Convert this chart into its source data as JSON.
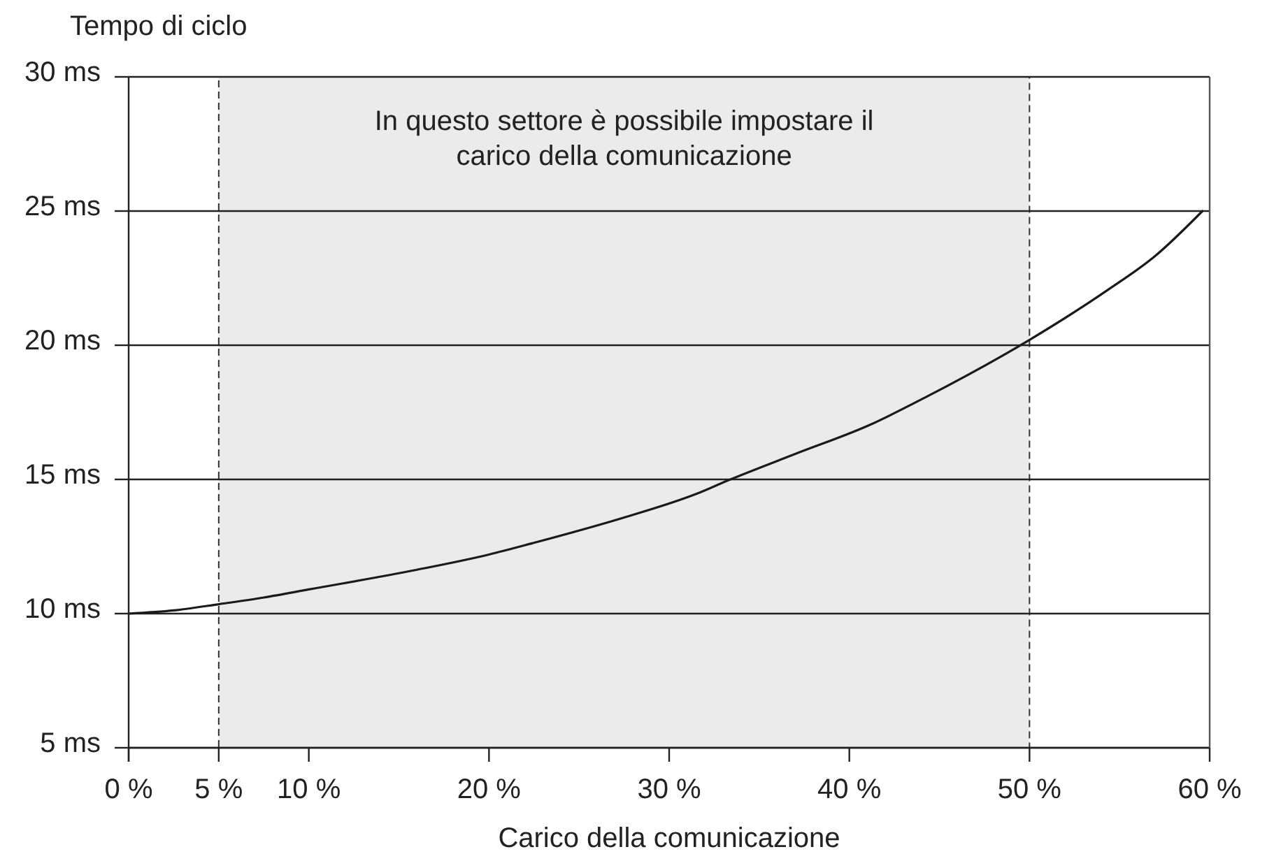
{
  "chart_data": {
    "type": "line",
    "xlabel": "Carico della comunicazione",
    "ylabel": "Tempo di ciclo",
    "x": [
      0,
      2.5,
      5,
      7.5,
      10,
      15.9,
      20,
      22.4,
      27.5,
      31.5,
      33.4,
      37,
      41.2,
      44.2,
      50,
      54.3,
      57,
      59.6
    ],
    "series": [
      {
        "color": "#1a1a1a",
        "values": [
          10,
          10.12,
          10.35,
          10.6,
          10.9,
          11.62,
          12.2,
          12.62,
          13.58,
          14.46,
          15,
          15.95,
          17.05,
          18.05,
          20.2,
          22.04,
          23.34,
          25
        ]
      }
    ],
    "xlim": [
      0,
      60
    ],
    "xticks": [
      {
        "value": 0,
        "label": "0 %"
      },
      {
        "value": 5,
        "label": "5 %"
      },
      {
        "value": 10,
        "label": "10 %"
      },
      {
        "value": 20,
        "label": "20 %"
      },
      {
        "value": 30,
        "label": "30 %"
      },
      {
        "value": 40,
        "label": "40 %"
      },
      {
        "value": 50,
        "label": "50 %"
      },
      {
        "value": 60,
        "label": "60 %"
      }
    ],
    "ylim": [
      5,
      30
    ],
    "yticks": [
      {
        "value": 5,
        "label": "5 ms"
      },
      {
        "value": 10,
        "label": "10 ms"
      },
      {
        "value": 15,
        "label": "15 ms"
      },
      {
        "value": 20,
        "label": "20 ms"
      },
      {
        "value": 25,
        "label": "25 ms"
      },
      {
        "value": 30,
        "label": "30 ms"
      }
    ],
    "grid": "y",
    "bands": [
      {
        "axis": "x",
        "from": 5,
        "to": 50,
        "label": "In questo settore è possibile impostare il carico della comunicazione",
        "color": "#ebebeb"
      }
    ]
  }
}
